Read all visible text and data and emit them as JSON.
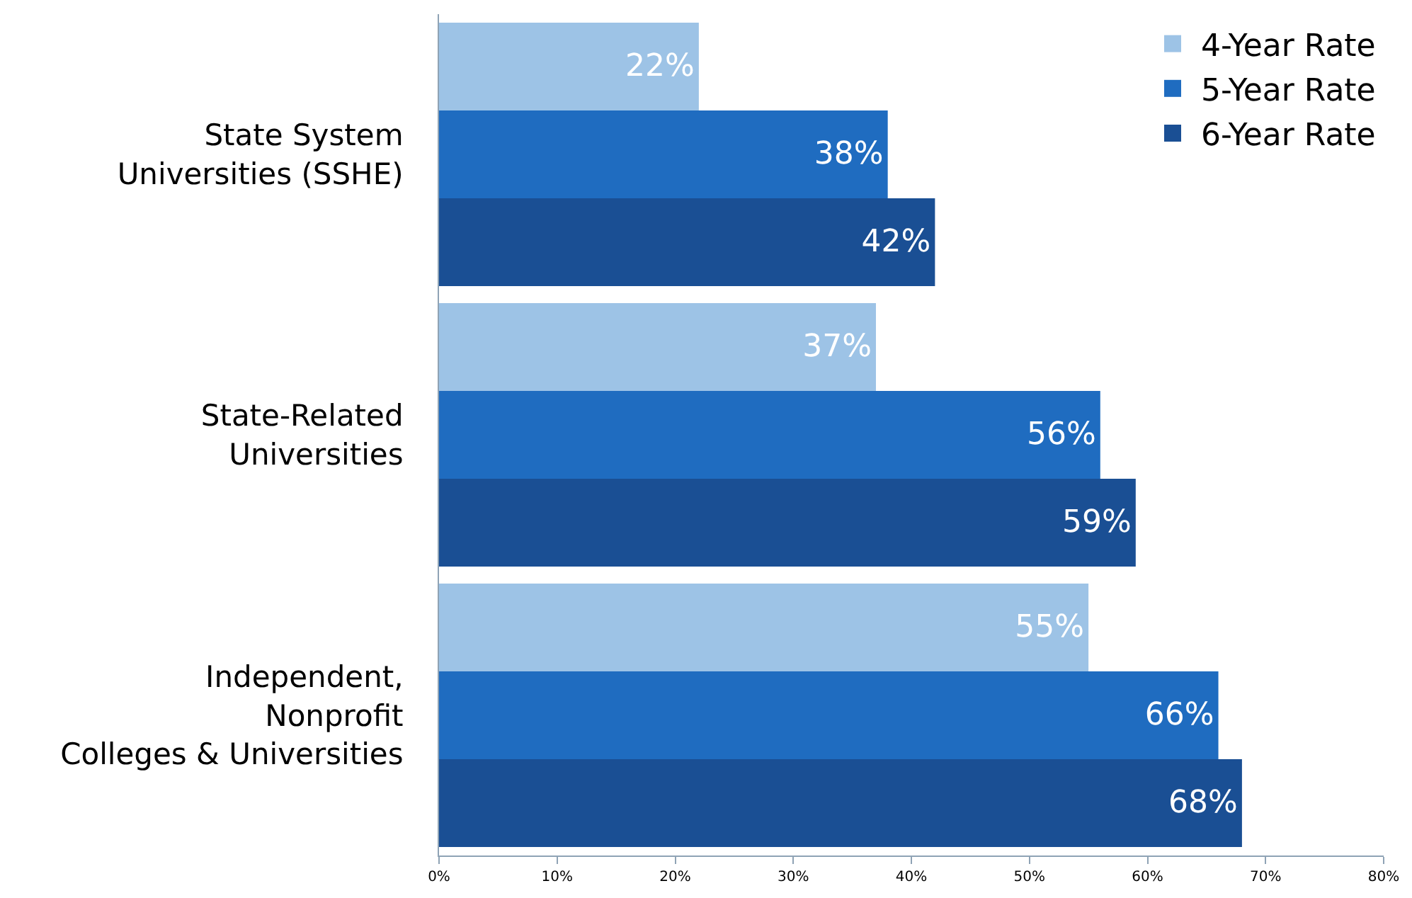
{
  "chart_data": {
    "type": "bar",
    "orientation": "horizontal",
    "categories": [
      "State System\nUniversities (SSHE)",
      "State-Related\nUniversities",
      "Independent,\nNonprofit\nColleges & Universities"
    ],
    "series": [
      {
        "name": "4-Year Rate",
        "color": "#9dc3e6",
        "values": [
          22,
          37,
          55
        ],
        "value_labels": [
          "22%",
          "37%",
          "55%"
        ]
      },
      {
        "name": "5-Year Rate",
        "color": "#1f6cc0",
        "values": [
          38,
          56,
          66
        ],
        "value_labels": [
          "38%",
          "56%",
          "66%"
        ]
      },
      {
        "name": "6-Year Rate",
        "color": "#1a4f94",
        "values": [
          42,
          59,
          68
        ],
        "value_labels": [
          "42%",
          "59%",
          "68%"
        ]
      }
    ],
    "xlim": [
      0,
      80
    ],
    "xticks": [
      {
        "value": 0,
        "label": "0%"
      },
      {
        "value": 10,
        "label": "10%"
      },
      {
        "value": 20,
        "label": "20%"
      },
      {
        "value": 30,
        "label": "30%"
      },
      {
        "value": 40,
        "label": "40%"
      },
      {
        "value": 50,
        "label": "50%"
      },
      {
        "value": 60,
        "label": "60%"
      },
      {
        "value": 70,
        "label": "70%"
      },
      {
        "value": 80,
        "label": "80%"
      }
    ],
    "grid": false,
    "legend": "top right"
  }
}
